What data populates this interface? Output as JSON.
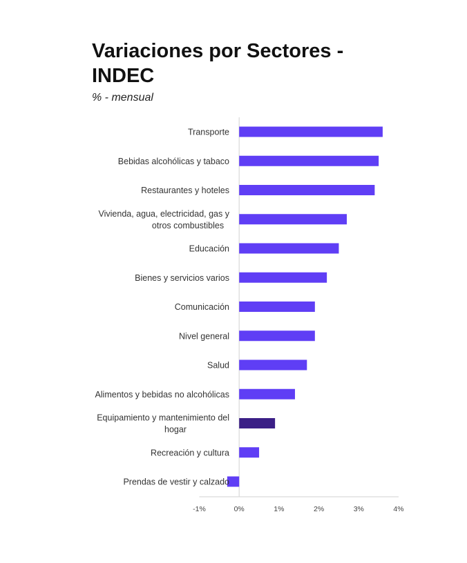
{
  "chart_data": {
    "type": "bar",
    "orientation": "horizontal",
    "title": "Variaciones por Sectores - INDEC",
    "subtitle": "% - mensual",
    "categories": [
      "Transporte",
      "Bebidas alcohólicas y tabaco",
      "Restaurantes y hoteles",
      "Vivienda, agua, electricidad, gas y otros combustibles",
      "Educación",
      "Bienes y servicios varios",
      "Comunicación",
      "Nivel general",
      "Salud",
      "Alimentos y bebidas no alcohólicas",
      "Equipamiento y mantenimiento del hogar",
      "Recreación y cultura",
      "Prendas de vestir y calzado"
    ],
    "label_lines": [
      [
        "Transporte"
      ],
      [
        "Bebidas alcohólicas y tabaco"
      ],
      [
        "Restaurantes y hoteles"
      ],
      [
        "Vivienda, agua, electricidad, gas y",
        "otros combustibles"
      ],
      [
        "Educación"
      ],
      [
        "Bienes y servicios varios"
      ],
      [
        "Comunicación"
      ],
      [
        "Nivel general"
      ],
      [
        "Salud"
      ],
      [
        "Alimentos y bebidas no alcohólicas"
      ],
      [
        "Equipamiento y mantenimiento del",
        "hogar"
      ],
      [
        "Recreación y cultura"
      ],
      [
        "Prendas de vestir y calzado"
      ]
    ],
    "values": [
      3.6,
      3.5,
      3.4,
      2.7,
      2.5,
      2.2,
      1.9,
      1.9,
      1.7,
      1.4,
      0.9,
      0.5,
      -0.3
    ],
    "highlight_index": 10,
    "xlim": [
      -1,
      4
    ],
    "xticks": [
      -1,
      0,
      1,
      2,
      3,
      4
    ],
    "xtick_labels": [
      "-1%",
      "0%",
      "1%",
      "2%",
      "3%",
      "4%"
    ],
    "xlabel": "",
    "ylabel": "",
    "grid": false,
    "legend": "none",
    "colors": {
      "bar": "#5f3ef5",
      "highlight": "#3b1f86",
      "axis": "#d9d9d9"
    }
  }
}
